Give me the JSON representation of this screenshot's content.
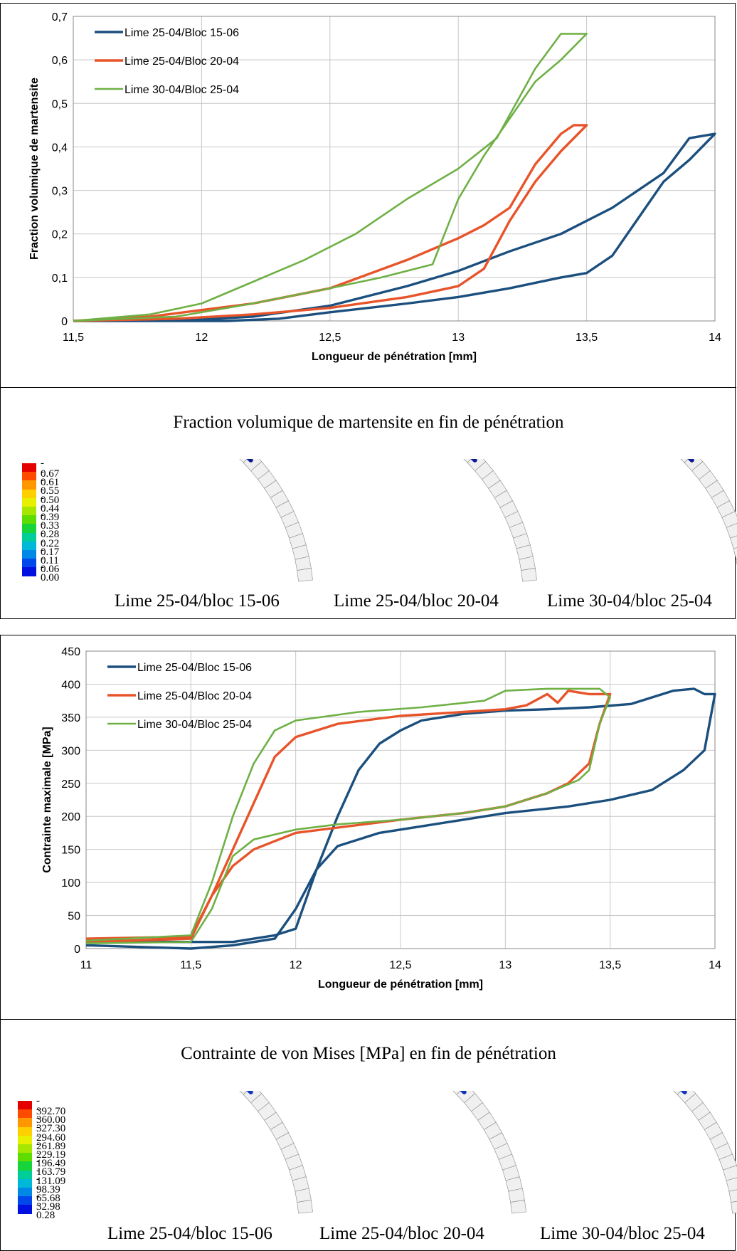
{
  "chart_data": [
    {
      "type": "line",
      "xlabel": "Longueur de pénétration [mm]",
      "ylabel": "Fraction volumique de martensite",
      "xlim": [
        11.5,
        14
      ],
      "ylim": [
        0,
        0.7
      ],
      "xticks": [
        "11,5",
        "12",
        "12,5",
        "13",
        "13,5",
        "14"
      ],
      "yticks": [
        "0",
        "0,1",
        "0,2",
        "0,3",
        "0,4",
        "0,5",
        "0,6",
        "0,7"
      ],
      "grid": true,
      "legend": "top-left",
      "series": [
        {
          "name": "Lime 25-04/Bloc 15-06",
          "color": "#1b4f7e",
          "x": [
            11.5,
            11.9,
            12.2,
            12.5,
            12.8,
            13.0,
            13.2,
            13.4,
            13.6,
            13.8,
            13.9,
            14.0,
            13.9,
            13.8,
            13.6,
            13.5,
            13.4,
            13.2,
            13.0,
            12.8,
            12.5,
            12.3,
            12.1,
            11.8,
            11.5
          ],
          "y": [
            0,
            0.0,
            0.01,
            0.035,
            0.08,
            0.115,
            0.16,
            0.2,
            0.26,
            0.34,
            0.42,
            0.43,
            0.37,
            0.32,
            0.15,
            0.11,
            0.1,
            0.075,
            0.055,
            0.04,
            0.02,
            0.005,
            0.0,
            0,
            0
          ]
        },
        {
          "name": "Lime 25-04/Bloc 20-04",
          "color": "#e8542a",
          "x": [
            11.5,
            11.8,
            12.0,
            12.2,
            12.5,
            12.8,
            13.0,
            13.1,
            13.2,
            13.3,
            13.4,
            13.45,
            13.5,
            13.4,
            13.3,
            13.2,
            13.1,
            13.0,
            12.8,
            12.5,
            12.2,
            11.9,
            11.5
          ],
          "y": [
            0,
            0.01,
            0.025,
            0.04,
            0.075,
            0.14,
            0.19,
            0.22,
            0.26,
            0.36,
            0.43,
            0.45,
            0.45,
            0.39,
            0.32,
            0.23,
            0.12,
            0.08,
            0.055,
            0.03,
            0.015,
            0.005,
            0
          ]
        },
        {
          "name": "Lime 30-04/Bloc 25-04",
          "color": "#6fb045",
          "x": [
            11.5,
            11.8,
            12.0,
            12.2,
            12.4,
            12.6,
            12.8,
            13.0,
            13.15,
            13.3,
            13.4,
            13.5,
            13.5,
            13.4,
            13.3,
            13.1,
            13.0,
            12.9,
            12.7,
            12.5,
            12.2,
            11.9,
            11.5
          ],
          "y": [
            0,
            0.015,
            0.04,
            0.09,
            0.14,
            0.2,
            0.28,
            0.35,
            0.42,
            0.58,
            0.66,
            0.66,
            0.66,
            0.6,
            0.55,
            0.38,
            0.28,
            0.13,
            0.1,
            0.075,
            0.04,
            0.01,
            0
          ]
        }
      ]
    },
    {
      "type": "line",
      "xlabel": "Longueur de pénétration [mm]",
      "ylabel": "Contrainte maximale  [MPa]",
      "xlim": [
        11,
        14
      ],
      "ylim": [
        0,
        450
      ],
      "xticks": [
        "11",
        "11,5",
        "12",
        "12,5",
        "13",
        "13,5",
        "14"
      ],
      "yticks": [
        "0",
        "50",
        "100",
        "150",
        "200",
        "250",
        "300",
        "350",
        "400",
        "450"
      ],
      "grid": true,
      "legend": "top-left",
      "series": [
        {
          "name": "Lime 25-04/Bloc 15-06",
          "color": "#1b4f7e",
          "x": [
            11.0,
            11.5,
            11.7,
            11.9,
            12.0,
            12.1,
            12.2,
            12.3,
            12.4,
            12.5,
            12.6,
            12.8,
            13.0,
            13.2,
            13.4,
            13.6,
            13.8,
            13.9,
            13.95,
            14.0,
            13.95,
            13.85,
            13.7,
            13.5,
            13.3,
            13.0,
            12.8,
            12.6,
            12.4,
            12.2,
            12.1,
            12.0,
            11.9,
            11.7,
            11.5,
            11.0
          ],
          "y": [
            10,
            10,
            10,
            20,
            30,
            120,
            200,
            270,
            310,
            330,
            345,
            355,
            360,
            362,
            365,
            370,
            390,
            393,
            385,
            385,
            300,
            270,
            240,
            225,
            215,
            205,
            195,
            185,
            175,
            155,
            120,
            60,
            15,
            5,
            0,
            5
          ]
        },
        {
          "name": "Lime 25-04/Bloc 20-04",
          "color": "#e8542a",
          "x": [
            11.0,
            11.5,
            11.6,
            11.7,
            11.8,
            11.9,
            12.0,
            12.2,
            12.5,
            12.8,
            13.0,
            13.1,
            13.2,
            13.25,
            13.3,
            13.4,
            13.5,
            13.45,
            13.4,
            13.3,
            13.2,
            13.0,
            12.8,
            12.5,
            12.2,
            12.0,
            11.8,
            11.7,
            11.6,
            11.5,
            11.0
          ],
          "y": [
            15,
            18,
            80,
            150,
            220,
            290,
            320,
            340,
            352,
            358,
            362,
            368,
            385,
            372,
            390,
            385,
            385,
            340,
            280,
            250,
            235,
            215,
            205,
            195,
            183,
            175,
            150,
            125,
            80,
            15,
            10
          ]
        },
        {
          "name": "Lime 30-04/Bloc 25-04",
          "color": "#6fb045",
          "x": [
            11.0,
            11.5,
            11.6,
            11.7,
            11.8,
            11.9,
            12.0,
            12.3,
            12.6,
            12.9,
            13.0,
            13.2,
            13.35,
            13.45,
            13.5,
            13.45,
            13.4,
            13.35,
            13.2,
            13.0,
            12.8,
            12.5,
            12.2,
            12.0,
            11.8,
            11.7,
            11.6,
            11.5,
            11.0
          ],
          "y": [
            12,
            20,
            100,
            200,
            280,
            330,
            345,
            358,
            365,
            375,
            390,
            393,
            393,
            393,
            380,
            340,
            270,
            255,
            235,
            215,
            205,
            195,
            188,
            180,
            165,
            140,
            60,
            10,
            8
          ]
        }
      ]
    }
  ],
  "section1": {
    "title": "Fraction volumique de martensite en fin de pénétration",
    "colorbar_ticks": [
      "0.67",
      "0.61",
      "0.55",
      "0.50",
      "0.44",
      "0.39",
      "0.33",
      "0.28",
      "0.22",
      "0.17",
      "0.11",
      "0.06",
      "0.00"
    ],
    "colorbar_colors": [
      "#e50000",
      "#ff4a00",
      "#ff9800",
      "#ffd000",
      "#e6f000",
      "#a6e600",
      "#5fdc00",
      "#17d43a",
      "#00ce98",
      "#00b8d8",
      "#0088e6",
      "#0048ec",
      "#0010e0"
    ],
    "labels": [
      "Lime 25-04/bloc 15-06",
      "Lime 25-04/bloc 20-04",
      "Lime 30-04/bloc 25-04"
    ]
  },
  "section2": {
    "title": "Contrainte de von Mises [MPa] en fin de pénétration",
    "colorbar_ticks": [
      "392.70",
      "360.00",
      "327.30",
      "294.60",
      "261.89",
      "229.19",
      "196.49",
      "163.79",
      "131.09",
      "98.39",
      "65.68",
      "32.98",
      "0.28"
    ],
    "colorbar_colors": [
      "#e50000",
      "#ff4a00",
      "#ff9800",
      "#ffd000",
      "#e6f000",
      "#a6e600",
      "#5fdc00",
      "#17d43a",
      "#00ce98",
      "#00b8d8",
      "#0088e6",
      "#0048ec",
      "#0010e0"
    ],
    "labels": [
      "Lime 25-04/bloc 15-06",
      "Lime 25-04/bloc 20-04",
      "Lime 30-04/bloc 25-04"
    ]
  }
}
